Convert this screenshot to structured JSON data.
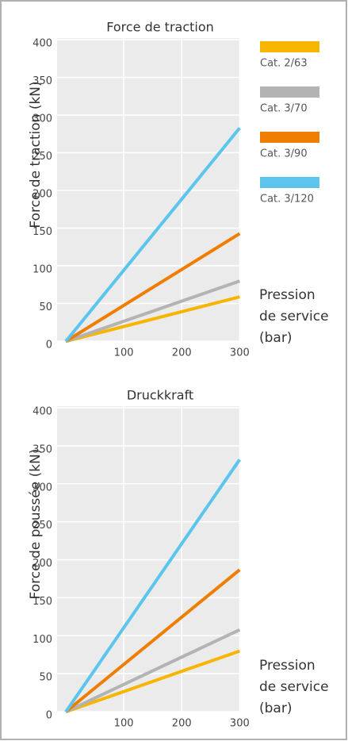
{
  "legend": [
    {
      "name": "Cat. 2/63",
      "color": "#f7b500"
    },
    {
      "name": "Cat. 3/70",
      "color": "#b3b3b3"
    },
    {
      "name": "Cat. 3/90",
      "color": "#ee7d00"
    },
    {
      "name": "Cat. 3/120",
      "color": "#5bc5ee"
    }
  ],
  "chart_data": [
    {
      "type": "line",
      "title": "Force de traction",
      "ylabel": "Force de traction (kN)",
      "xlabel": [
        "Pression",
        "de service",
        "(bar)"
      ],
      "x": [
        0,
        300
      ],
      "series": [
        {
          "color": "#f7b500",
          "values": [
            5,
            64
          ]
        },
        {
          "color": "#b3b3b3",
          "values": [
            5,
            85
          ]
        },
        {
          "color": "#ee7d00",
          "values": [
            5,
            148
          ]
        },
        {
          "color": "#5bc5ee",
          "values": [
            5,
            288
          ]
        }
      ],
      "xlim": [
        -15,
        305
      ],
      "xticks": [
        100,
        200,
        300
      ],
      "ylim": [
        0,
        400
      ],
      "yticks": [
        0,
        50,
        100,
        150,
        200,
        250,
        300,
        350,
        400
      ],
      "grid": true
    },
    {
      "type": "line",
      "title": "Druckkraft",
      "ylabel": "Force de poussée (kN)",
      "xlabel": [
        "Pression",
        "de service",
        "(bar)"
      ],
      "x": [
        0,
        300
      ],
      "series": [
        {
          "color": "#f7b500",
          "values": [
            5,
            85
          ]
        },
        {
          "color": "#b3b3b3",
          "values": [
            5,
            113
          ]
        },
        {
          "color": "#ee7d00",
          "values": [
            5,
            192
          ]
        },
        {
          "color": "#5bc5ee",
          "values": [
            5,
            337
          ]
        }
      ],
      "xlim": [
        -15,
        305
      ],
      "xticks": [
        100,
        200,
        300
      ],
      "ylim": [
        0,
        400
      ],
      "yticks": [
        0,
        50,
        100,
        150,
        200,
        250,
        300,
        350,
        400
      ],
      "grid": true
    }
  ]
}
